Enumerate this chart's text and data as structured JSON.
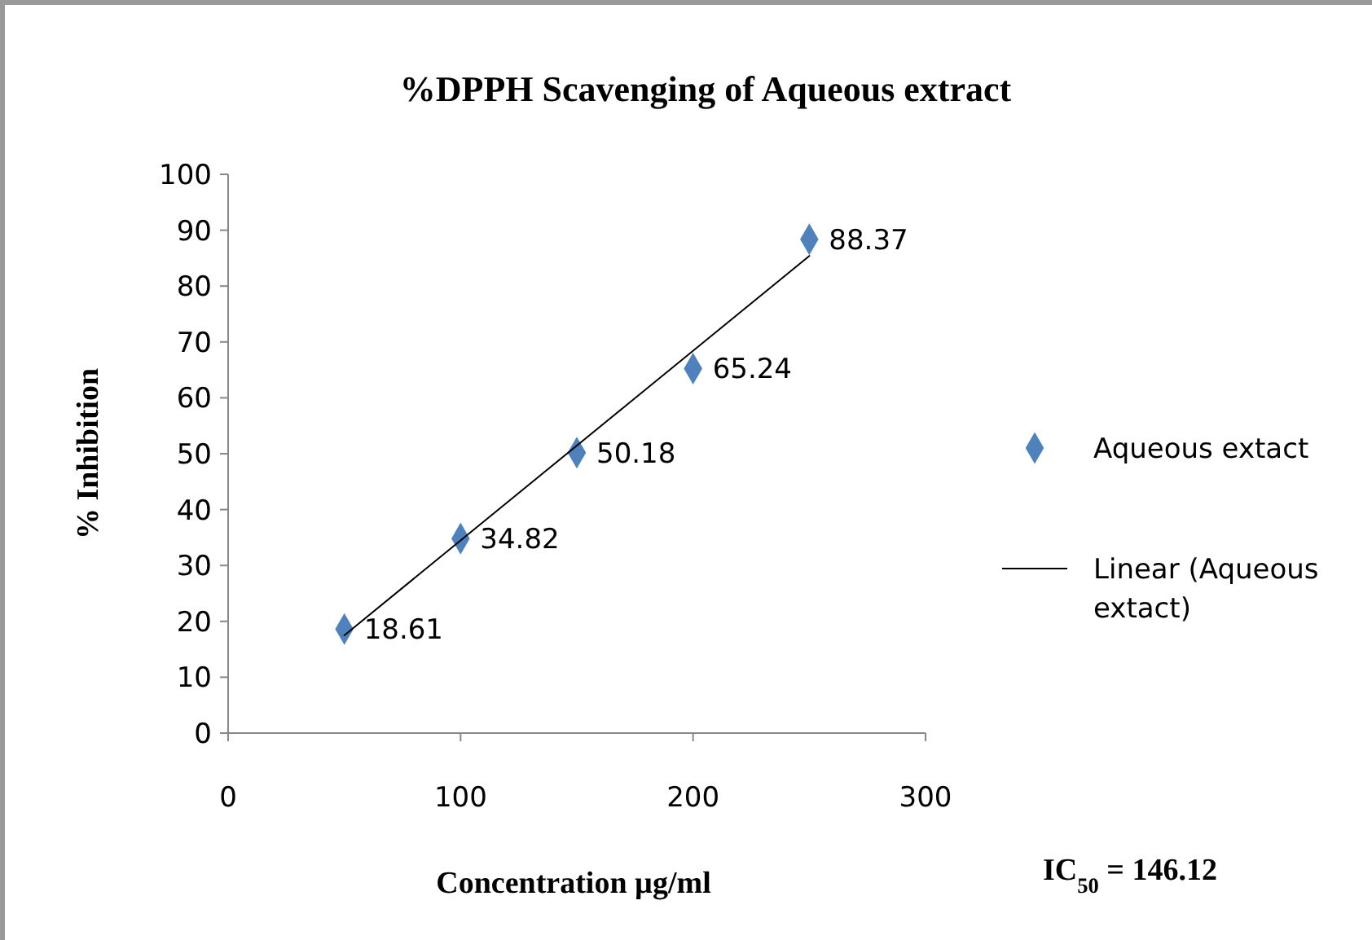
{
  "chart_data": {
    "type": "scatter",
    "title": "%DPPH Scavenging of Aqueous extract",
    "xlabel": "Concentration µg/ml",
    "ylabel": "% Inhibition",
    "x": [
      50,
      100,
      150,
      200,
      250
    ],
    "series": [
      {
        "name": "Aqueous extact",
        "color": "#4f81bd",
        "marker": "diamond",
        "values": [
          18.61,
          34.82,
          50.18,
          65.24,
          88.37
        ],
        "value_labels": [
          "18.61",
          "34.82",
          "50.18",
          "65.24",
          "88.37"
        ]
      },
      {
        "type": "line",
        "name": "Linear (Aqueous extact)",
        "color": "#000000",
        "line_style": "solid",
        "x": [
          50,
          250
        ],
        "values": [
          17.5,
          85.4
        ]
      }
    ],
    "xlim": [
      0,
      300
    ],
    "xticks": [
      0,
      100,
      200,
      300
    ],
    "ylim": [
      0,
      100
    ],
    "yticks": [
      0,
      10,
      20,
      30,
      40,
      50,
      60,
      70,
      80,
      90,
      100
    ],
    "legend": "right",
    "annotations": [
      "IC$_{50}$ = 146.12"
    ]
  }
}
